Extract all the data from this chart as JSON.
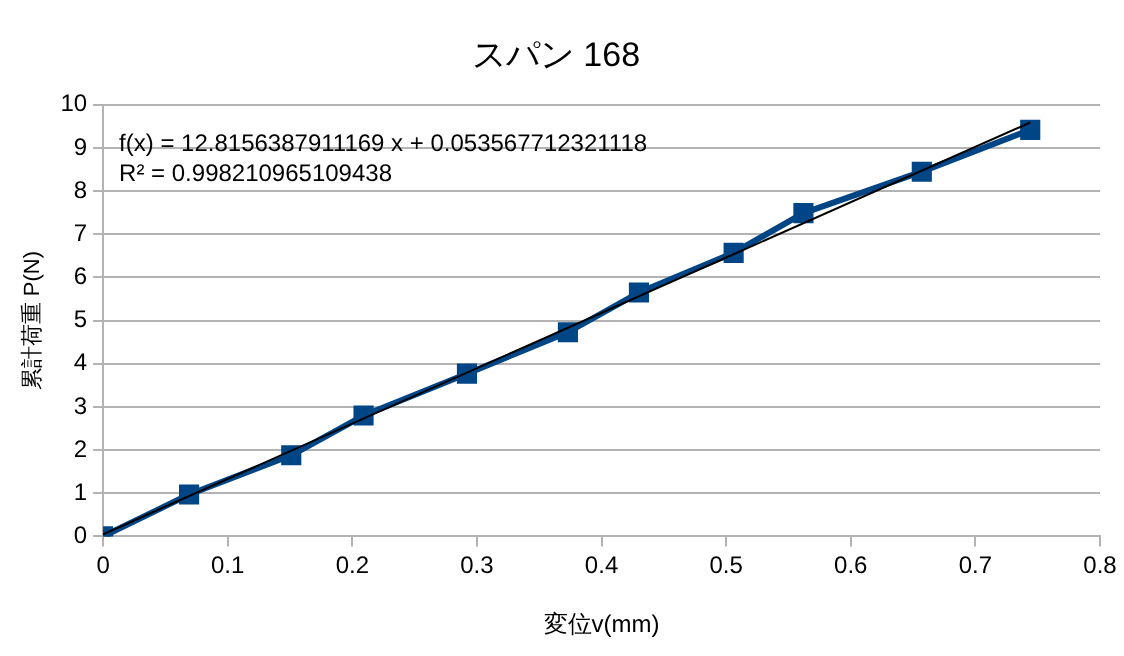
{
  "chart_data": {
    "type": "line",
    "title": "スパン 168",
    "xlabel": "変位v(mm)",
    "ylabel": "累計荷重 P(N)",
    "x": [
      0,
      0.069,
      0.151,
      0.209,
      0.292,
      0.373,
      0.43,
      0.506,
      0.562,
      0.657,
      0.744
    ],
    "series": [
      {
        "color": "#004586",
        "marker": "square",
        "values": [
          0,
          0.97,
          1.88,
          2.8,
          3.77,
          4.73,
          5.65,
          6.57,
          7.49,
          8.45,
          9.42
        ]
      },
      {
        "type": "line",
        "color": "#000000",
        "marker": "none",
        "x": [
          0,
          0.744
        ],
        "values": [
          0.05,
          9.59
        ]
      }
    ],
    "xlim": [
      0,
      0.8
    ],
    "xticks": [
      0,
      0.1,
      0.2,
      0.3,
      0.4,
      0.5,
      0.6,
      0.7,
      0.8
    ],
    "ylim": [
      0,
      10
    ],
    "yticks": [
      0,
      1,
      2,
      3,
      4,
      5,
      6,
      7,
      8,
      9,
      10
    ],
    "grid": "y",
    "legend": false,
    "annotations": [
      "f(x) = 12.8156387911169 x + 0.053567712321118",
      "R² = 0.998210965109438"
    ]
  }
}
